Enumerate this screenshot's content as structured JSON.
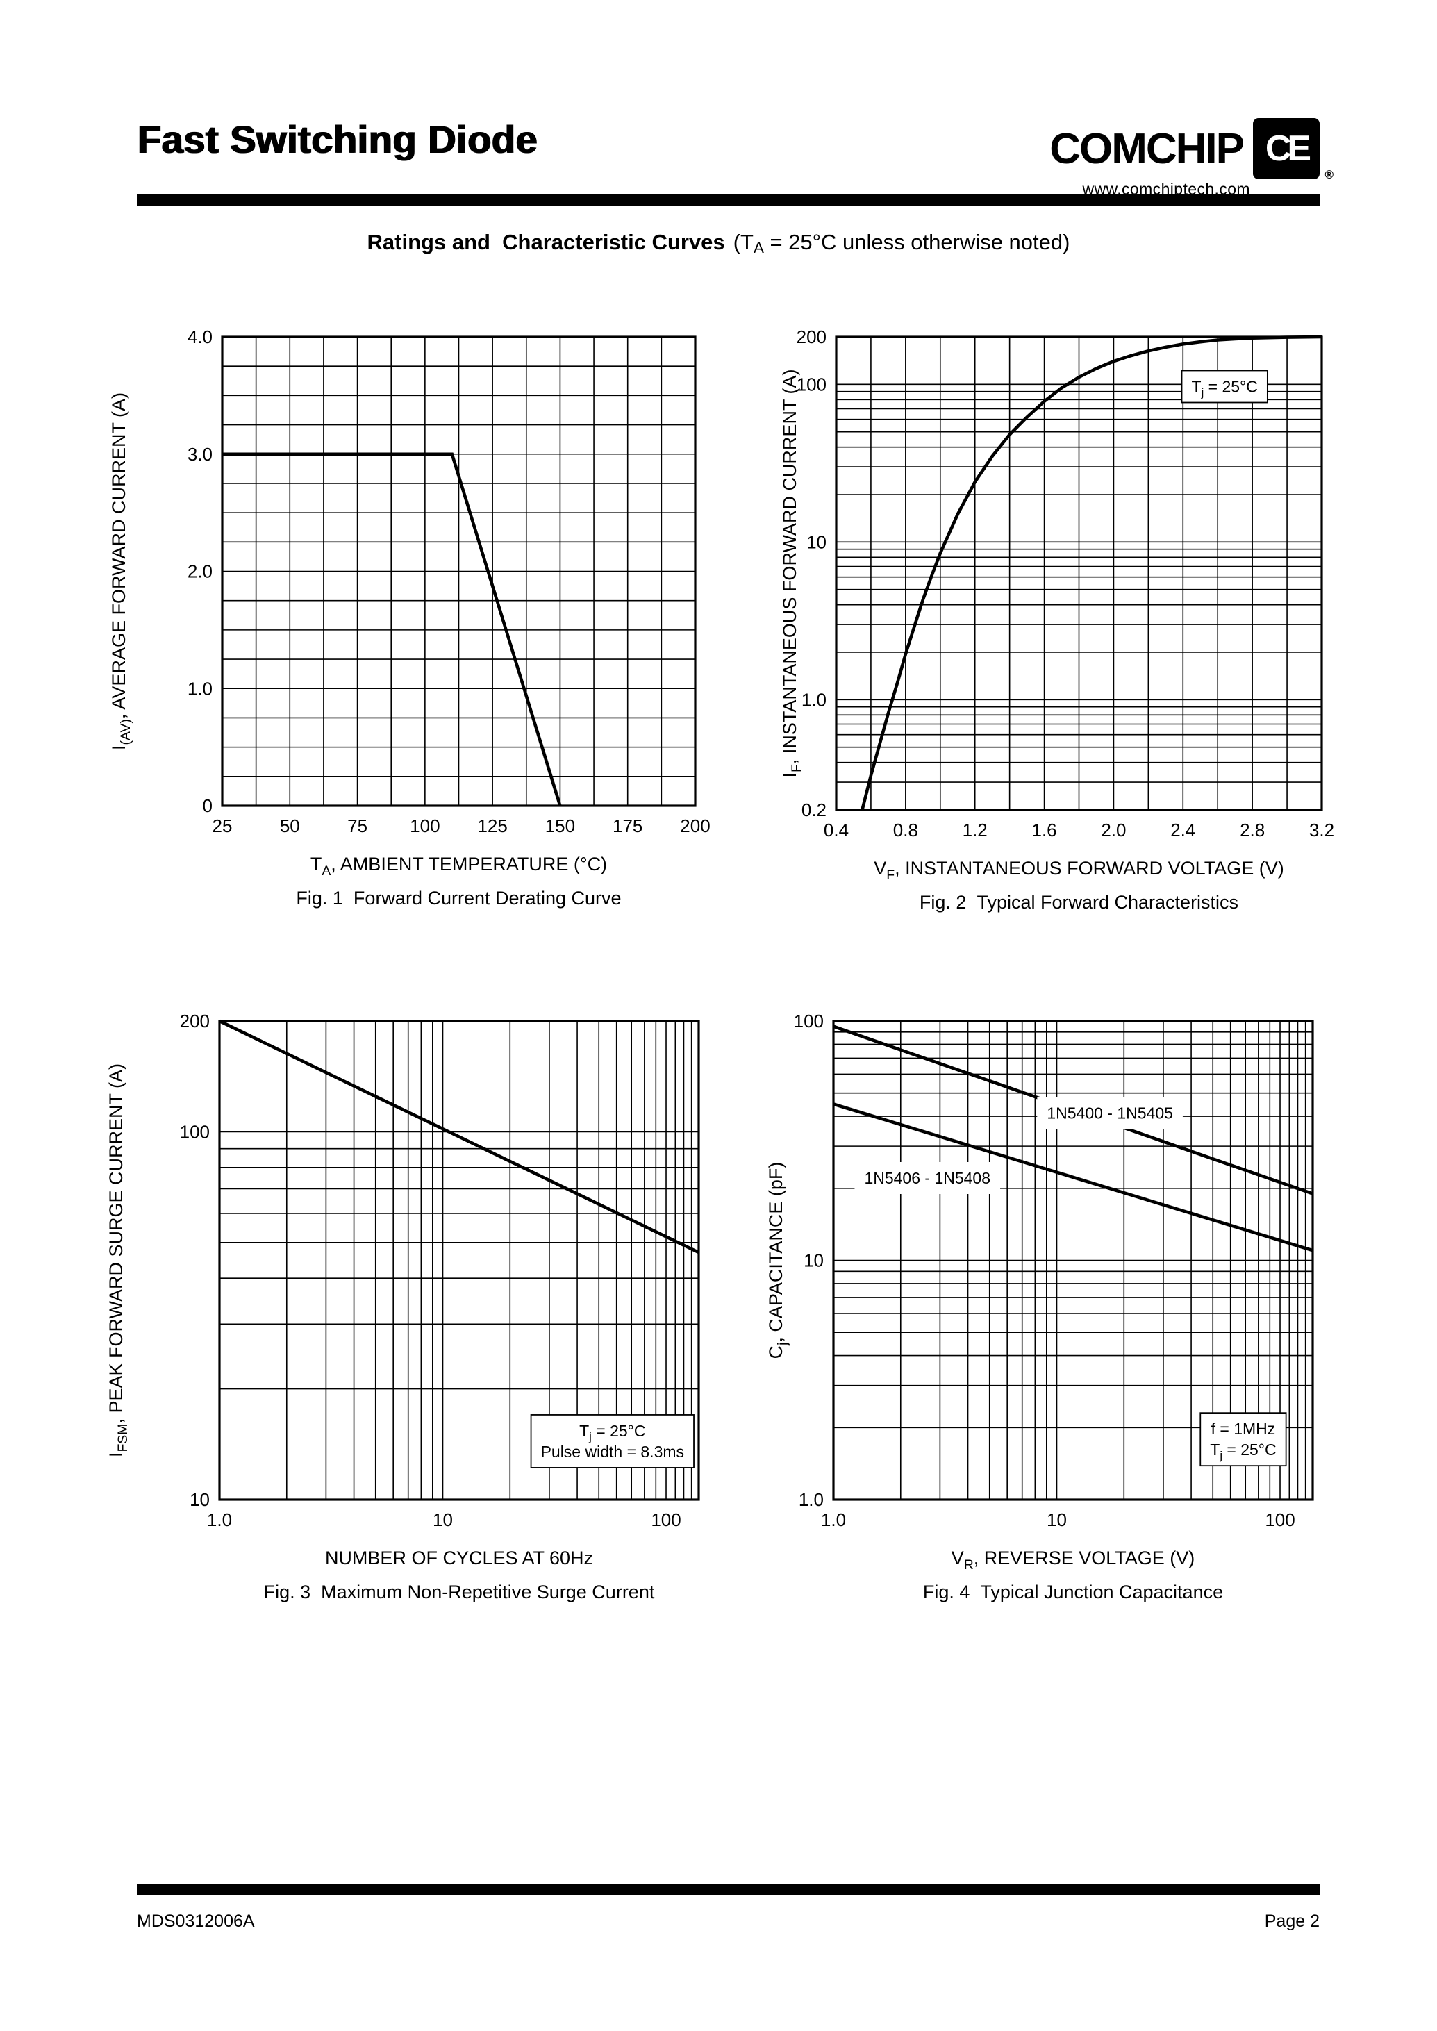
{
  "page": {
    "background": "#ffffff",
    "ink": "#000000"
  },
  "header": {
    "title": "Fast Switching Diode",
    "brand": "COMCHIP",
    "logo_text": "CE",
    "logo_reg": "®",
    "website": "www.comchiptech.com",
    "subtitle": {
      "bold": "Ratings and  Characteristic Curves",
      "pre": "(T",
      "sub": "A",
      "post": " = 25°C unless otherwise noted)"
    }
  },
  "footer": {
    "doc_id": "MDS0312006A",
    "page_label": "Page 2"
  },
  "chart_data": [
    {
      "id": "fig1",
      "type": "line",
      "caption": "Fig. 1  Forward Current Derating Curve",
      "x_scale": "linear",
      "y_scale": "linear",
      "xlim": [
        25,
        200
      ],
      "ylim": [
        0,
        4.0
      ],
      "x_minor_step": 12.5,
      "y_minor_step": 0.25,
      "x_ticks": [
        [
          25,
          "25"
        ],
        [
          50,
          "50"
        ],
        [
          75,
          "75"
        ],
        [
          100,
          "100"
        ],
        [
          125,
          "125"
        ],
        [
          150,
          "150"
        ],
        [
          175,
          "175"
        ],
        [
          200,
          "200"
        ]
      ],
      "y_ticks": [
        [
          0,
          "0"
        ],
        [
          1,
          "1.0"
        ],
        [
          2,
          "2.0"
        ],
        [
          3,
          "3.0"
        ],
        [
          4,
          "4.0"
        ]
      ],
      "xlabel": [
        [
          "T",
          0
        ],
        [
          "A",
          1
        ],
        [
          ", AMBIENT TEMPERATURE (°C)",
          0
        ]
      ],
      "ylabel": [
        [
          "I",
          0
        ],
        [
          "(AV)",
          1
        ],
        [
          ", AVERAGE FORWARD CURRENT (A)",
          0
        ]
      ],
      "series": [
        {
          "name": "forward-current-derating",
          "points": [
            [
              25,
              3.0
            ],
            [
              110,
              3.0
            ],
            [
              150,
              0
            ]
          ]
        }
      ],
      "annotations": []
    },
    {
      "id": "fig2",
      "type": "line",
      "caption": "Fig. 2  Typical Forward Characteristics",
      "x_scale": "linear",
      "y_scale": "log",
      "xlim": [
        0.4,
        3.2
      ],
      "ylim": [
        0.2,
        200
      ],
      "x_minor_step": 0.2,
      "x_ticks": [
        [
          0.4,
          "0.4"
        ],
        [
          0.8,
          "0.8"
        ],
        [
          1.2,
          "1.2"
        ],
        [
          1.6,
          "1.6"
        ],
        [
          2.0,
          "2.0"
        ],
        [
          2.4,
          "2.4"
        ],
        [
          2.8,
          "2.8"
        ],
        [
          3.2,
          "3.2"
        ]
      ],
      "y_ticks": [
        [
          200,
          "200"
        ],
        [
          100,
          "100"
        ],
        [
          10,
          "10"
        ],
        [
          1,
          "1.0"
        ],
        [
          0.2,
          "0.2"
        ]
      ],
      "xlabel": [
        [
          "V",
          0
        ],
        [
          "F",
          1
        ],
        [
          ", INSTANTANEOUS FORWARD VOLTAGE (V)",
          0
        ]
      ],
      "ylabel": [
        [
          "I",
          0
        ],
        [
          "F",
          1
        ],
        [
          ", INSTANTANEOUS FORWARD CURRENT (A)",
          0
        ]
      ],
      "series": [
        {
          "name": "typical-forward-characteristic",
          "points": [
            [
              0.55,
              0.2
            ],
            [
              0.6,
              0.33
            ],
            [
              0.65,
              0.52
            ],
            [
              0.7,
              0.82
            ],
            [
              0.75,
              1.25
            ],
            [
              0.8,
              1.95
            ],
            [
              0.85,
              2.9
            ],
            [
              0.9,
              4.3
            ],
            [
              0.95,
              6.1
            ],
            [
              1.0,
              8.5
            ],
            [
              1.1,
              15
            ],
            [
              1.2,
              24
            ],
            [
              1.3,
              35
            ],
            [
              1.4,
              48
            ],
            [
              1.5,
              62
            ],
            [
              1.6,
              78
            ],
            [
              1.7,
              95
            ],
            [
              1.8,
              111
            ],
            [
              1.9,
              126
            ],
            [
              2.0,
              140
            ],
            [
              2.1,
              152
            ],
            [
              2.2,
              163
            ],
            [
              2.3,
              172
            ],
            [
              2.4,
              180
            ],
            [
              2.5,
              186
            ],
            [
              2.6,
              191
            ],
            [
              2.7,
              194
            ],
            [
              2.8,
              196.5
            ],
            [
              3.0,
              198.8
            ],
            [
              3.2,
              200
            ]
          ]
        }
      ],
      "annotations": [
        {
          "name": "tj-note",
          "fx": 0.8,
          "fy": 0.105,
          "border": true,
          "lines": [
            [
              [
                "T",
                0
              ],
              [
                "j",
                1
              ],
              [
                " = 25°C",
                0
              ]
            ]
          ]
        }
      ]
    },
    {
      "id": "fig3",
      "type": "line",
      "caption": "Fig. 3  Maximum Non-Repetitive Surge Current",
      "x_scale": "log",
      "y_scale": "log",
      "xlim": [
        1,
        140
      ],
      "ylim": [
        10,
        200
      ],
      "x_grid_extra": [
        110,
        120,
        130
      ],
      "x_ticks": [
        [
          1,
          "1.0"
        ],
        [
          10,
          "10"
        ],
        [
          100,
          "100"
        ]
      ],
      "y_ticks": [
        [
          200,
          "200"
        ],
        [
          100,
          "100"
        ],
        [
          10,
          "10"
        ]
      ],
      "xlabel": [
        [
          "NUMBER OF CYCLES AT 60Hz",
          0
        ]
      ],
      "ylabel": [
        [
          "I",
          0
        ],
        [
          "FSM",
          1
        ],
        [
          ", PEAK FORWARD SURGE CURRENT (A)",
          0
        ]
      ],
      "series": [
        {
          "name": "max-non-repetitive-surge",
          "points": [
            [
              1,
              200
            ],
            [
              140,
              47
            ]
          ]
        }
      ],
      "annotations": [
        {
          "name": "conditions-note",
          "fx": 0.82,
          "fy": 0.878,
          "border": true,
          "lines": [
            [
              [
                "T",
                0
              ],
              [
                "j",
                1
              ],
              [
                " = 25°C",
                0
              ]
            ],
            [
              [
                "Pulse width = 8.3ms",
                0
              ]
            ]
          ]
        }
      ]
    },
    {
      "id": "fig4",
      "type": "line",
      "caption": "Fig. 4  Typical Junction Capacitance",
      "x_scale": "log",
      "y_scale": "log",
      "xlim": [
        1,
        140
      ],
      "ylim": [
        1,
        100
      ],
      "x_grid_extra": [
        110,
        120,
        130
      ],
      "x_ticks": [
        [
          1,
          "1.0"
        ],
        [
          10,
          "10"
        ],
        [
          100,
          "100"
        ]
      ],
      "y_ticks": [
        [
          100,
          "100"
        ],
        [
          10,
          "10"
        ],
        [
          1,
          "1.0"
        ]
      ],
      "xlabel": [
        [
          "V",
          0
        ],
        [
          "R",
          1
        ],
        [
          ", REVERSE VOLTAGE (V)",
          0
        ]
      ],
      "ylabel": [
        [
          "C",
          0
        ],
        [
          "j",
          1
        ],
        [
          ", CAPACITANCE (pF)",
          0
        ]
      ],
      "series": [
        {
          "name": "1N5400-1N5405",
          "points": [
            [
              1,
              95
            ],
            [
              140,
              19
            ]
          ]
        },
        {
          "name": "1N5406-1N5408",
          "points": [
            [
              1,
              45
            ],
            [
              140,
              11
            ]
          ]
        }
      ],
      "annotations": [
        {
          "name": "series-label-1N5400-1N5405",
          "fx": 0.577,
          "fy": 0.192,
          "border": false,
          "lines": [
            [
              [
                "1N5400 - 1N5405",
                0
              ]
            ]
          ]
        },
        {
          "name": "series-label-1N5406-1N5408",
          "fx": 0.196,
          "fy": 0.328,
          "border": false,
          "lines": [
            [
              [
                "1N5406 - 1N5408",
                0
              ]
            ]
          ]
        },
        {
          "name": "conditions-note",
          "fx": 0.855,
          "fy": 0.874,
          "border": true,
          "lines": [
            [
              [
                "f = 1MHz",
                0
              ]
            ],
            [
              [
                "T",
                0
              ],
              [
                "j",
                1
              ],
              [
                " = 25°C",
                0
              ]
            ]
          ]
        }
      ]
    }
  ]
}
